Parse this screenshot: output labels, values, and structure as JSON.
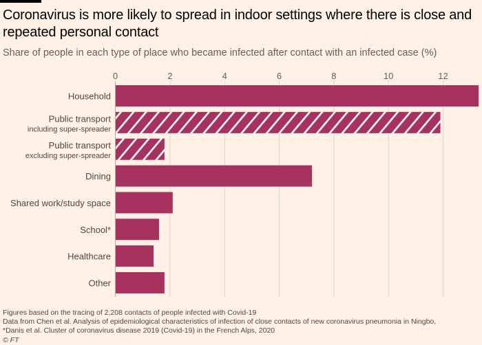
{
  "header": {
    "title": "Coronavirus is more likely to spread in indoor settings where there is close and repeated personal contact",
    "subtitle": "Share of people in each type of place who became infected after contact with an infected case (%)"
  },
  "colors": {
    "background": "#fff1e5",
    "bar": "#a8325e",
    "hatch": "#ffffff",
    "gridline": "#e3d3c8",
    "topbar": "#000000"
  },
  "chart_data": {
    "type": "bar",
    "orientation": "horizontal",
    "title": "Coronavirus is more likely to spread in indoor settings where there is close and repeated personal contact",
    "subtitle": "Share of people in each type of place who became infected after contact with an infected case (%)",
    "xlabel": "",
    "ylabel": "",
    "xlim": [
      0,
      13.3
    ],
    "xticks": [
      0,
      2,
      4,
      6,
      8,
      10,
      12
    ],
    "xtick_labels": [
      "0",
      "2",
      "4",
      "6",
      "8",
      "10",
      "12"
    ],
    "x_axis_position": "top",
    "grid": true,
    "legend": null,
    "categories": [
      {
        "label": "Household",
        "sublabel": "",
        "value": 13.3,
        "hatched": false
      },
      {
        "label": "Public transport",
        "sublabel": "including super-spreader",
        "value": 11.9,
        "hatched": true
      },
      {
        "label": "Public transport",
        "sublabel": "excluding super-spreader",
        "value": 1.8,
        "hatched": true
      },
      {
        "label": "Dining",
        "sublabel": "",
        "value": 7.2,
        "hatched": false
      },
      {
        "label": "Shared work/study space",
        "sublabel": "",
        "value": 2.1,
        "hatched": false
      },
      {
        "label": "School*",
        "sublabel": "",
        "value": 1.6,
        "hatched": false
      },
      {
        "label": "Healthcare",
        "sublabel": "",
        "value": 1.4,
        "hatched": false
      },
      {
        "label": "Other",
        "sublabel": "",
        "value": 1.8,
        "hatched": false
      }
    ]
  },
  "footer": {
    "lines": [
      "Figures based on the tracing of 2,208 contacts of people infected with Covid-19",
      "Data from Chen et al. Analysis of epidemiological characteristics of infection of close contacts of new coronavirus pneumonia in Ningbo,",
      "*Danis et al. Cluster of coronavirus disease 2019 (Covid-19) in the French Alps, 2020"
    ],
    "copyright": "© FT"
  }
}
